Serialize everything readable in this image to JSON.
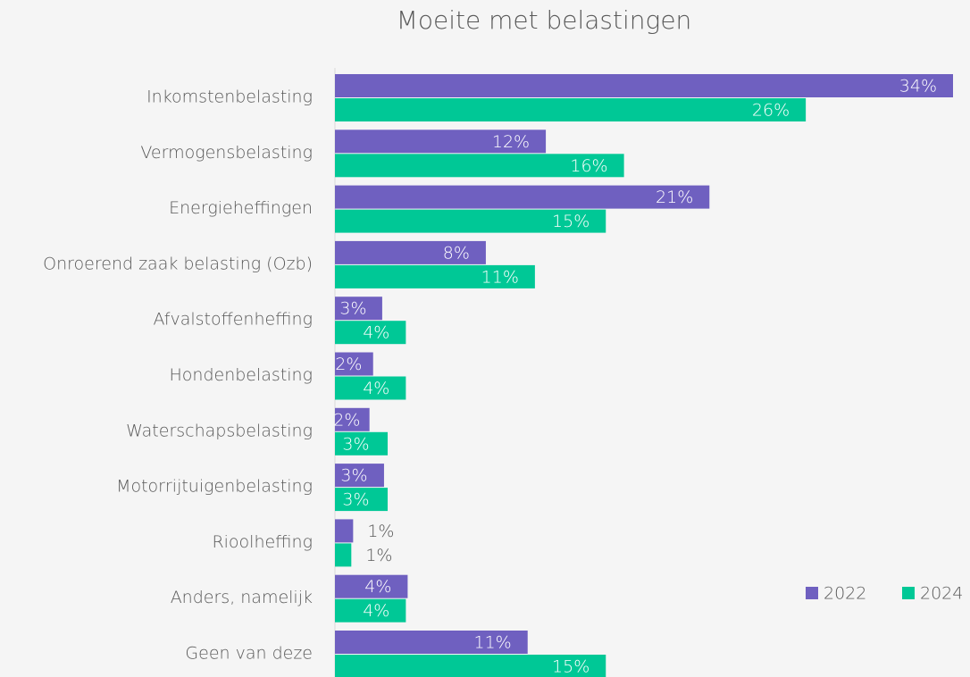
{
  "chart_data": {
    "type": "hbar",
    "title": "Moeite met belastingen",
    "categories": [
      "Inkomstenbelasting",
      "Vermogensbelasting",
      "Energieheffingen",
      "Onroerend zaak belasting (Ozb)",
      "Afvalstoffenheffing",
      "Hondenbelasting",
      "Waterschapsbelasting",
      "Motorrijtuigenbelasting",
      "Rioolheffing",
      "Anders, namelijk",
      "Geen van deze"
    ],
    "series": [
      {
        "name": "2022",
        "color": "#6f60c0",
        "values": [
          34.0,
          11.6,
          20.6,
          8.3,
          2.6,
          2.1,
          1.9,
          2.7,
          1.0,
          4.0,
          10.6
        ],
        "value_labels": [
          "34%",
          "12%",
          "21%",
          "8%",
          "3%",
          "2%",
          "2%",
          "3%",
          "1%",
          "4%",
          "11%"
        ]
      },
      {
        "name": "2024",
        "color": "#00c896",
        "values": [
          25.9,
          15.9,
          14.9,
          11.0,
          3.9,
          3.9,
          2.9,
          2.9,
          0.9,
          3.9,
          14.9
        ],
        "value_labels": [
          "26%",
          "16%",
          "15%",
          "11%",
          "4%",
          "4%",
          "3%",
          "3%",
          "1%",
          "4%",
          "15%"
        ]
      }
    ],
    "xlim": [
      0,
      34
    ],
    "legend": "right"
  }
}
